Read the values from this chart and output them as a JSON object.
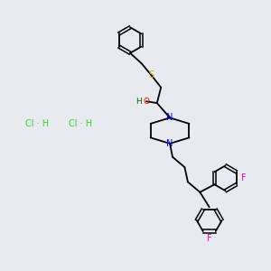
{
  "background_color": "#e8eaf0",
  "bond_color": "#000000",
  "atom_colors": {
    "S": "#ccaa00",
    "O": "#ff0000",
    "N": "#0000ff",
    "F": "#ff00cc",
    "H": "#006600",
    "Cl": "#22dd22"
  }
}
